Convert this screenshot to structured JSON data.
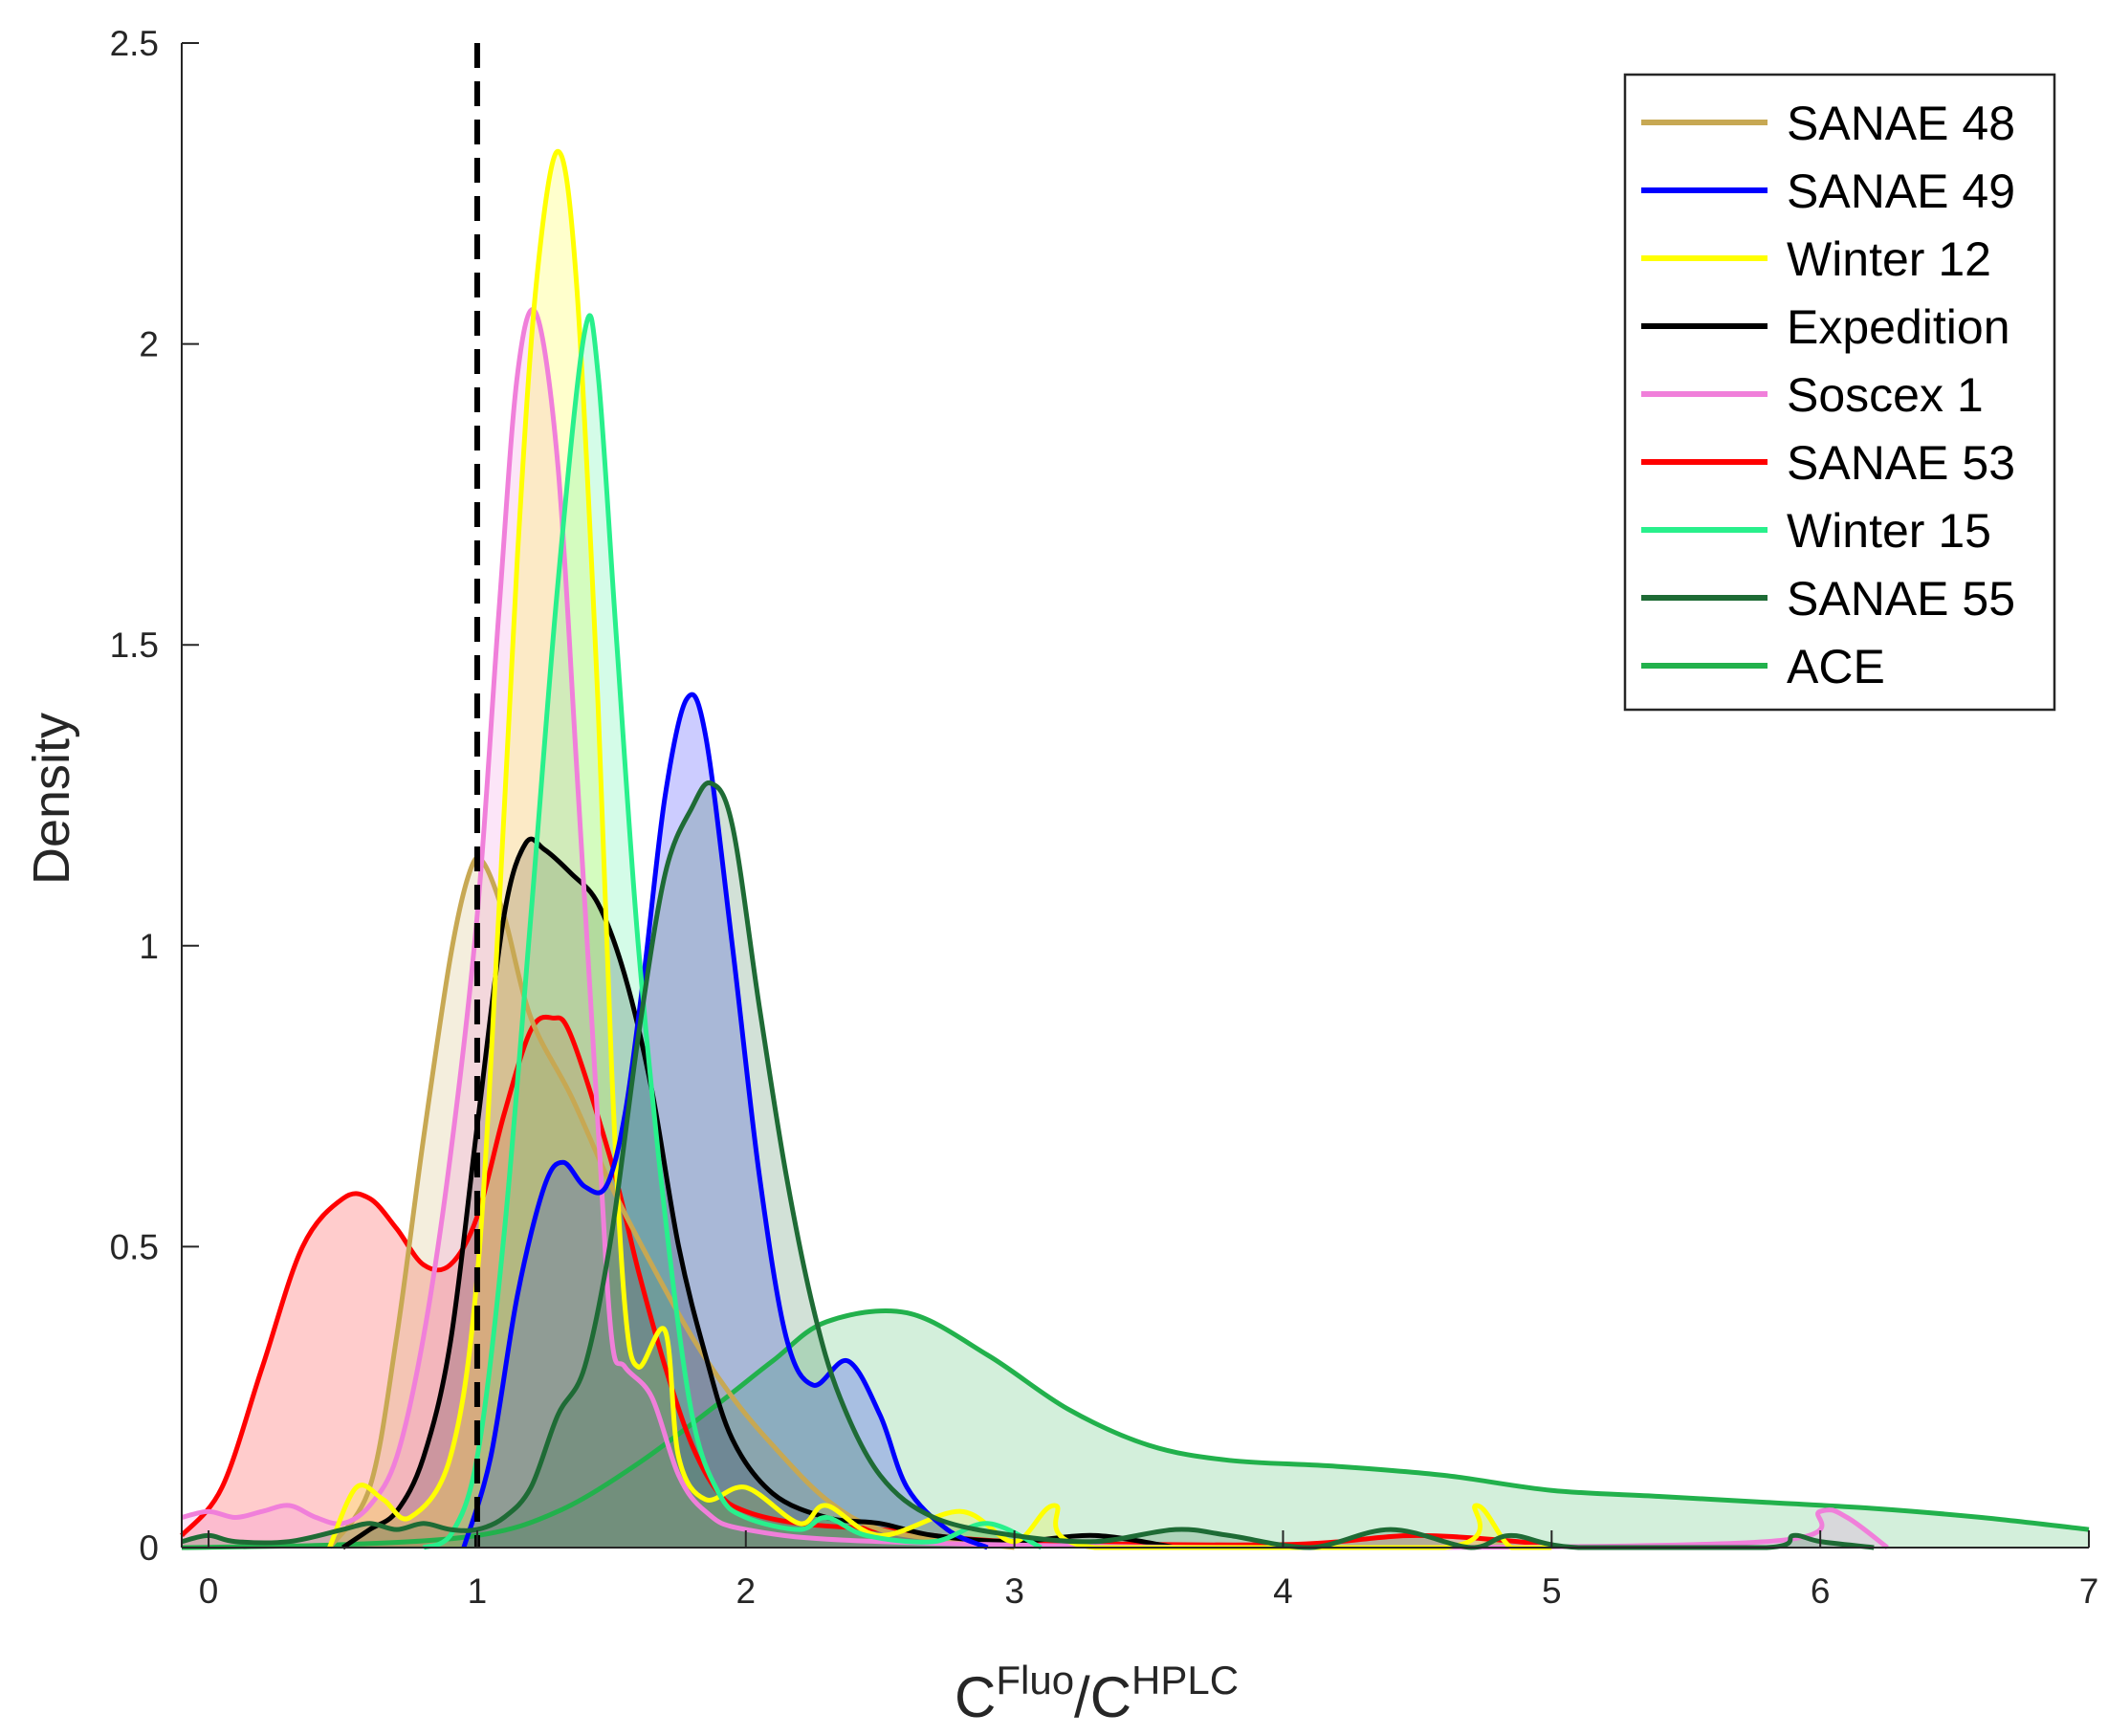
{
  "chart_data": {
    "type": "area",
    "title": "",
    "xlabel": {
      "base1": "C",
      "sup1": "Fluo",
      "mid": "/C",
      "sup2": "HPLC"
    },
    "ylabel": "Density",
    "xlim": [
      -0.1,
      7
    ],
    "ylim": [
      0,
      2.5
    ],
    "xticks": [
      0,
      1,
      2,
      3,
      4,
      5,
      6,
      7
    ],
    "yticks": [
      0,
      0.5,
      1,
      1.5,
      2,
      2.5
    ],
    "xtick_labels": [
      "0",
      "1",
      "2",
      "3",
      "4",
      "5",
      "6",
      "7"
    ],
    "ytick_labels": [
      "0",
      "0.5",
      "1",
      "1.5",
      "2",
      "2.5"
    ],
    "reference_line": {
      "x": 1,
      "style": "dashed",
      "color": "#000000"
    },
    "legend_position": "top-right",
    "series": [
      {
        "name": "ACE",
        "color": "#22b14c",
        "points": [
          [
            -0.1,
            0
          ],
          [
            0.5,
            0.005
          ],
          [
            1.0,
            0.02
          ],
          [
            1.3,
            0.06
          ],
          [
            1.6,
            0.14
          ],
          [
            1.9,
            0.24
          ],
          [
            2.1,
            0.31
          ],
          [
            2.3,
            0.375
          ],
          [
            2.6,
            0.39
          ],
          [
            2.9,
            0.32
          ],
          [
            3.2,
            0.23
          ],
          [
            3.5,
            0.17
          ],
          [
            3.8,
            0.145
          ],
          [
            4.2,
            0.135
          ],
          [
            4.6,
            0.12
          ],
          [
            5.0,
            0.095
          ],
          [
            5.4,
            0.085
          ],
          [
            5.8,
            0.075
          ],
          [
            6.2,
            0.065
          ],
          [
            6.6,
            0.05
          ],
          [
            7.0,
            0.03
          ]
        ]
      },
      {
        "name": "SANAE 53",
        "color": "#ff0000",
        "points": [
          [
            -0.1,
            0.02
          ],
          [
            0.05,
            0.1
          ],
          [
            0.2,
            0.3
          ],
          [
            0.35,
            0.5
          ],
          [
            0.5,
            0.58
          ],
          [
            0.6,
            0.58
          ],
          [
            0.7,
            0.53
          ],
          [
            0.8,
            0.47
          ],
          [
            0.9,
            0.47
          ],
          [
            1.0,
            0.55
          ],
          [
            1.1,
            0.72
          ],
          [
            1.2,
            0.86
          ],
          [
            1.28,
            0.88
          ],
          [
            1.35,
            0.85
          ],
          [
            1.5,
            0.64
          ],
          [
            1.6,
            0.46
          ],
          [
            1.7,
            0.3
          ],
          [
            1.8,
            0.17
          ],
          [
            1.9,
            0.09
          ],
          [
            2.0,
            0.06
          ],
          [
            2.2,
            0.04
          ],
          [
            2.5,
            0.03
          ],
          [
            3.0,
            0.01
          ],
          [
            4.0,
            0.005
          ],
          [
            4.5,
            0.02
          ],
          [
            5.0,
            0.005
          ]
        ]
      },
      {
        "name": "SANAE 48",
        "color": "#c7a853",
        "points": [
          [
            0.45,
            0
          ],
          [
            0.6,
            0.1
          ],
          [
            0.7,
            0.35
          ],
          [
            0.8,
            0.68
          ],
          [
            0.9,
            0.98
          ],
          [
            0.97,
            1.12
          ],
          [
            1.02,
            1.14
          ],
          [
            1.1,
            1.05
          ],
          [
            1.2,
            0.88
          ],
          [
            1.35,
            0.75
          ],
          [
            1.5,
            0.6
          ],
          [
            1.65,
            0.47
          ],
          [
            1.8,
            0.35
          ],
          [
            1.95,
            0.25
          ],
          [
            2.1,
            0.17
          ],
          [
            2.3,
            0.08
          ],
          [
            2.5,
            0.03
          ],
          [
            2.8,
            0.01
          ],
          [
            3.0,
            0
          ]
        ]
      },
      {
        "name": "Expedition",
        "color": "#000000",
        "points": [
          [
            0.5,
            0
          ],
          [
            0.6,
            0.03
          ],
          [
            0.7,
            0.06
          ],
          [
            0.8,
            0.15
          ],
          [
            0.9,
            0.34
          ],
          [
            1.0,
            0.7
          ],
          [
            1.1,
            1.05
          ],
          [
            1.18,
            1.17
          ],
          [
            1.25,
            1.16
          ],
          [
            1.35,
            1.12
          ],
          [
            1.45,
            1.07
          ],
          [
            1.55,
            0.95
          ],
          [
            1.65,
            0.76
          ],
          [
            1.75,
            0.5
          ],
          [
            1.85,
            0.32
          ],
          [
            1.95,
            0.18
          ],
          [
            2.1,
            0.09
          ],
          [
            2.3,
            0.05
          ],
          [
            2.5,
            0.04
          ],
          [
            2.7,
            0.02
          ],
          [
            3.0,
            0.01
          ],
          [
            3.3,
            0.02
          ],
          [
            3.6,
            0
          ]
        ]
      },
      {
        "name": "Soscex 1",
        "color": "#f07fda",
        "points": [
          [
            -0.1,
            0.05
          ],
          [
            0.0,
            0.06
          ],
          [
            0.1,
            0.05
          ],
          [
            0.2,
            0.06
          ],
          [
            0.3,
            0.07
          ],
          [
            0.4,
            0.05
          ],
          [
            0.5,
            0.04
          ],
          [
            0.6,
            0.07
          ],
          [
            0.7,
            0.15
          ],
          [
            0.8,
            0.35
          ],
          [
            0.9,
            0.65
          ],
          [
            1.0,
            1.05
          ],
          [
            1.08,
            1.55
          ],
          [
            1.15,
            1.95
          ],
          [
            1.22,
            2.05
          ],
          [
            1.3,
            1.8
          ],
          [
            1.37,
            1.3
          ],
          [
            1.45,
            0.7
          ],
          [
            1.5,
            0.35
          ],
          [
            1.55,
            0.3
          ],
          [
            1.65,
            0.25
          ],
          [
            1.75,
            0.12
          ],
          [
            1.85,
            0.06
          ],
          [
            2.0,
            0.03
          ],
          [
            2.5,
            0.01
          ],
          [
            4.0,
            0
          ],
          [
            5.8,
            0.01
          ],
          [
            6.0,
            0.06
          ],
          [
            6.1,
            0.05
          ],
          [
            6.25,
            0
          ]
        ]
      },
      {
        "name": "Winter 12",
        "color": "#ffff00",
        "points": [
          [
            0.45,
            0
          ],
          [
            0.55,
            0.1
          ],
          [
            0.65,
            0.08
          ],
          [
            0.75,
            0.05
          ],
          [
            0.9,
            0.15
          ],
          [
            1.0,
            0.45
          ],
          [
            1.08,
            1.05
          ],
          [
            1.15,
            1.65
          ],
          [
            1.22,
            2.1
          ],
          [
            1.3,
            2.32
          ],
          [
            1.37,
            2.1
          ],
          [
            1.45,
            1.4
          ],
          [
            1.5,
            0.8
          ],
          [
            1.55,
            0.4
          ],
          [
            1.6,
            0.3
          ],
          [
            1.7,
            0.36
          ],
          [
            1.75,
            0.15
          ],
          [
            1.85,
            0.08
          ],
          [
            2.0,
            0.1
          ],
          [
            2.2,
            0.04
          ],
          [
            2.3,
            0.07
          ],
          [
            2.5,
            0.02
          ],
          [
            2.8,
            0.06
          ],
          [
            3.0,
            0.01
          ],
          [
            3.15,
            0.07
          ],
          [
            3.3,
            0
          ],
          [
            4.6,
            0
          ],
          [
            4.72,
            0.07
          ],
          [
            4.85,
            0
          ],
          [
            5.0,
            0
          ]
        ]
      },
      {
        "name": "SANAE 49",
        "color": "#0000ff",
        "points": [
          [
            0.95,
            0
          ],
          [
            1.05,
            0.15
          ],
          [
            1.15,
            0.42
          ],
          [
            1.25,
            0.6
          ],
          [
            1.32,
            0.64
          ],
          [
            1.4,
            0.6
          ],
          [
            1.48,
            0.6
          ],
          [
            1.55,
            0.72
          ],
          [
            1.62,
            0.95
          ],
          [
            1.7,
            1.25
          ],
          [
            1.78,
            1.41
          ],
          [
            1.85,
            1.35
          ],
          [
            1.95,
            1.0
          ],
          [
            2.05,
            0.62
          ],
          [
            2.15,
            0.35
          ],
          [
            2.25,
            0.27
          ],
          [
            2.38,
            0.31
          ],
          [
            2.5,
            0.22
          ],
          [
            2.6,
            0.1
          ],
          [
            2.75,
            0.03
          ],
          [
            2.9,
            0
          ]
        ]
      },
      {
        "name": "Winter 15",
        "color": "#28f08c",
        "points": [
          [
            0.8,
            0
          ],
          [
            0.9,
            0.02
          ],
          [
            1.0,
            0.15
          ],
          [
            1.1,
            0.52
          ],
          [
            1.2,
            1.05
          ],
          [
            1.3,
            1.6
          ],
          [
            1.4,
            2.02
          ],
          [
            1.45,
            1.95
          ],
          [
            1.52,
            1.5
          ],
          [
            1.6,
            1.0
          ],
          [
            1.7,
            0.55
          ],
          [
            1.8,
            0.22
          ],
          [
            1.9,
            0.09
          ],
          [
            2.0,
            0.05
          ],
          [
            2.2,
            0.03
          ],
          [
            2.3,
            0.05
          ],
          [
            2.45,
            0.02
          ],
          [
            2.7,
            0.01
          ],
          [
            2.9,
            0.04
          ],
          [
            3.1,
            0
          ]
        ]
      },
      {
        "name": "SANAE 55",
        "color": "#1e6b35",
        "points": [
          [
            -0.1,
            0.01
          ],
          [
            0.0,
            0.02
          ],
          [
            0.1,
            0.01
          ],
          [
            0.3,
            0.01
          ],
          [
            0.5,
            0.03
          ],
          [
            0.6,
            0.04
          ],
          [
            0.7,
            0.03
          ],
          [
            0.8,
            0.04
          ],
          [
            0.9,
            0.03
          ],
          [
            1.0,
            0.03
          ],
          [
            1.1,
            0.05
          ],
          [
            1.2,
            0.1
          ],
          [
            1.3,
            0.22
          ],
          [
            1.4,
            0.3
          ],
          [
            1.5,
            0.52
          ],
          [
            1.6,
            0.85
          ],
          [
            1.7,
            1.12
          ],
          [
            1.8,
            1.23
          ],
          [
            1.87,
            1.27
          ],
          [
            1.95,
            1.2
          ],
          [
            2.05,
            0.9
          ],
          [
            2.15,
            0.62
          ],
          [
            2.25,
            0.4
          ],
          [
            2.35,
            0.25
          ],
          [
            2.5,
            0.12
          ],
          [
            2.7,
            0.05
          ],
          [
            3.0,
            0.02
          ],
          [
            3.3,
            0.01
          ],
          [
            3.6,
            0.03
          ],
          [
            3.8,
            0.02
          ],
          [
            4.1,
            0
          ],
          [
            4.4,
            0.03
          ],
          [
            4.7,
            0
          ],
          [
            4.85,
            0.02
          ],
          [
            5.1,
            0
          ],
          [
            5.8,
            0
          ],
          [
            5.9,
            0.02
          ],
          [
            6.0,
            0.01
          ],
          [
            6.2,
            0
          ]
        ]
      }
    ],
    "legend_order": [
      "SANAE 48",
      "SANAE 49",
      "Winter 12",
      "Expedition",
      "Soscex 1",
      "SANAE 53",
      "Winter 15",
      "SANAE 55",
      "ACE"
    ]
  }
}
